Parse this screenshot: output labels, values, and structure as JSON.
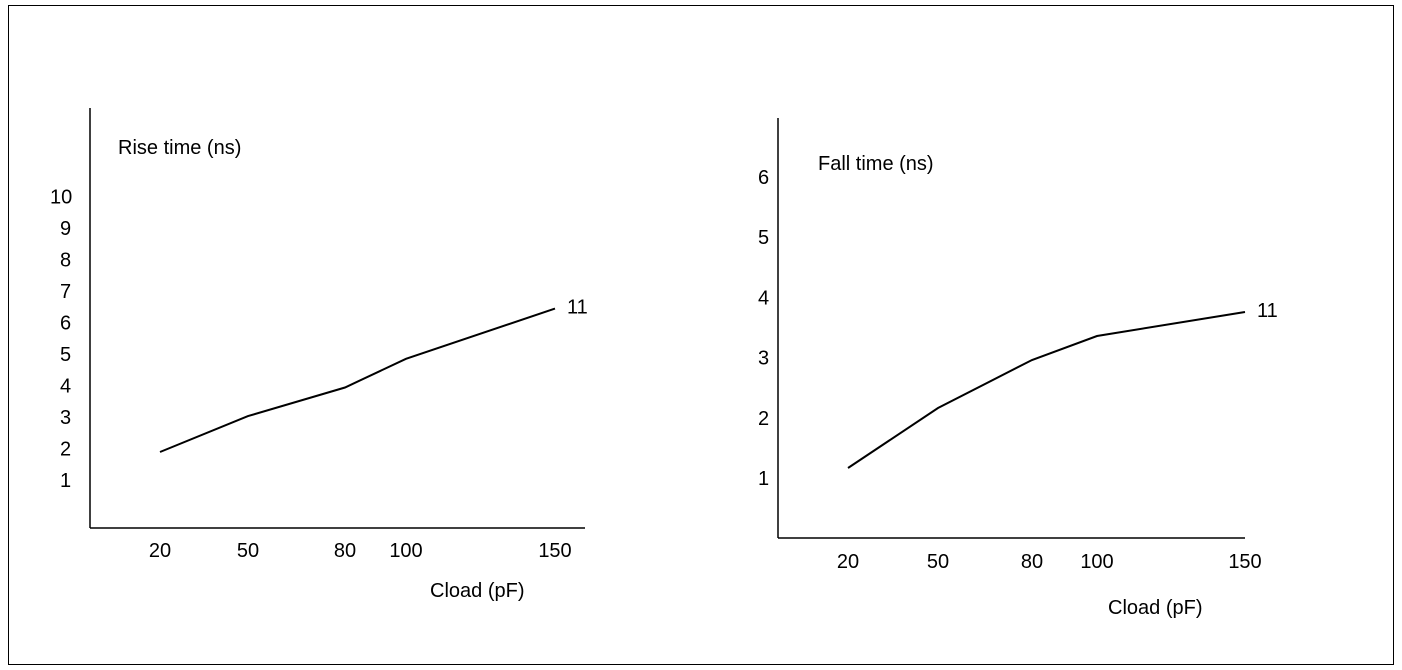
{
  "chart_data": [
    {
      "type": "line",
      "title": "Rise time (ns)",
      "xlabel": "Cload (pF)",
      "ylabel": "",
      "categories": [
        "20",
        "50",
        "80",
        "100",
        "150"
      ],
      "x": [
        20,
        50,
        80,
        100,
        150
      ],
      "y_ticks": [
        "1",
        "2",
        "3",
        "4",
        "5",
        "6",
        "7",
        "8",
        "9",
        "10"
      ],
      "series": [
        {
          "label": "11",
          "x": [
            20,
            50,
            80,
            100,
            150
          ],
          "y": [
            1.9,
            2.9,
            3.7,
            4.5,
            5.9
          ]
        }
      ]
    },
    {
      "type": "line",
      "title": "Fall time (ns)",
      "xlabel": "Cload (pF)",
      "ylabel": "",
      "categories": [
        "20",
        "50",
        "80",
        "100",
        "150"
      ],
      "x": [
        20,
        50,
        80,
        100,
        150
      ],
      "y_ticks": [
        "1",
        "2",
        "3",
        "4",
        "5",
        "6"
      ],
      "series": [
        {
          "label": "11",
          "x": [
            20,
            50,
            80,
            100,
            150
          ],
          "y": [
            1.2,
            2.2,
            3.0,
            3.4,
            3.8
          ]
        }
      ]
    }
  ]
}
